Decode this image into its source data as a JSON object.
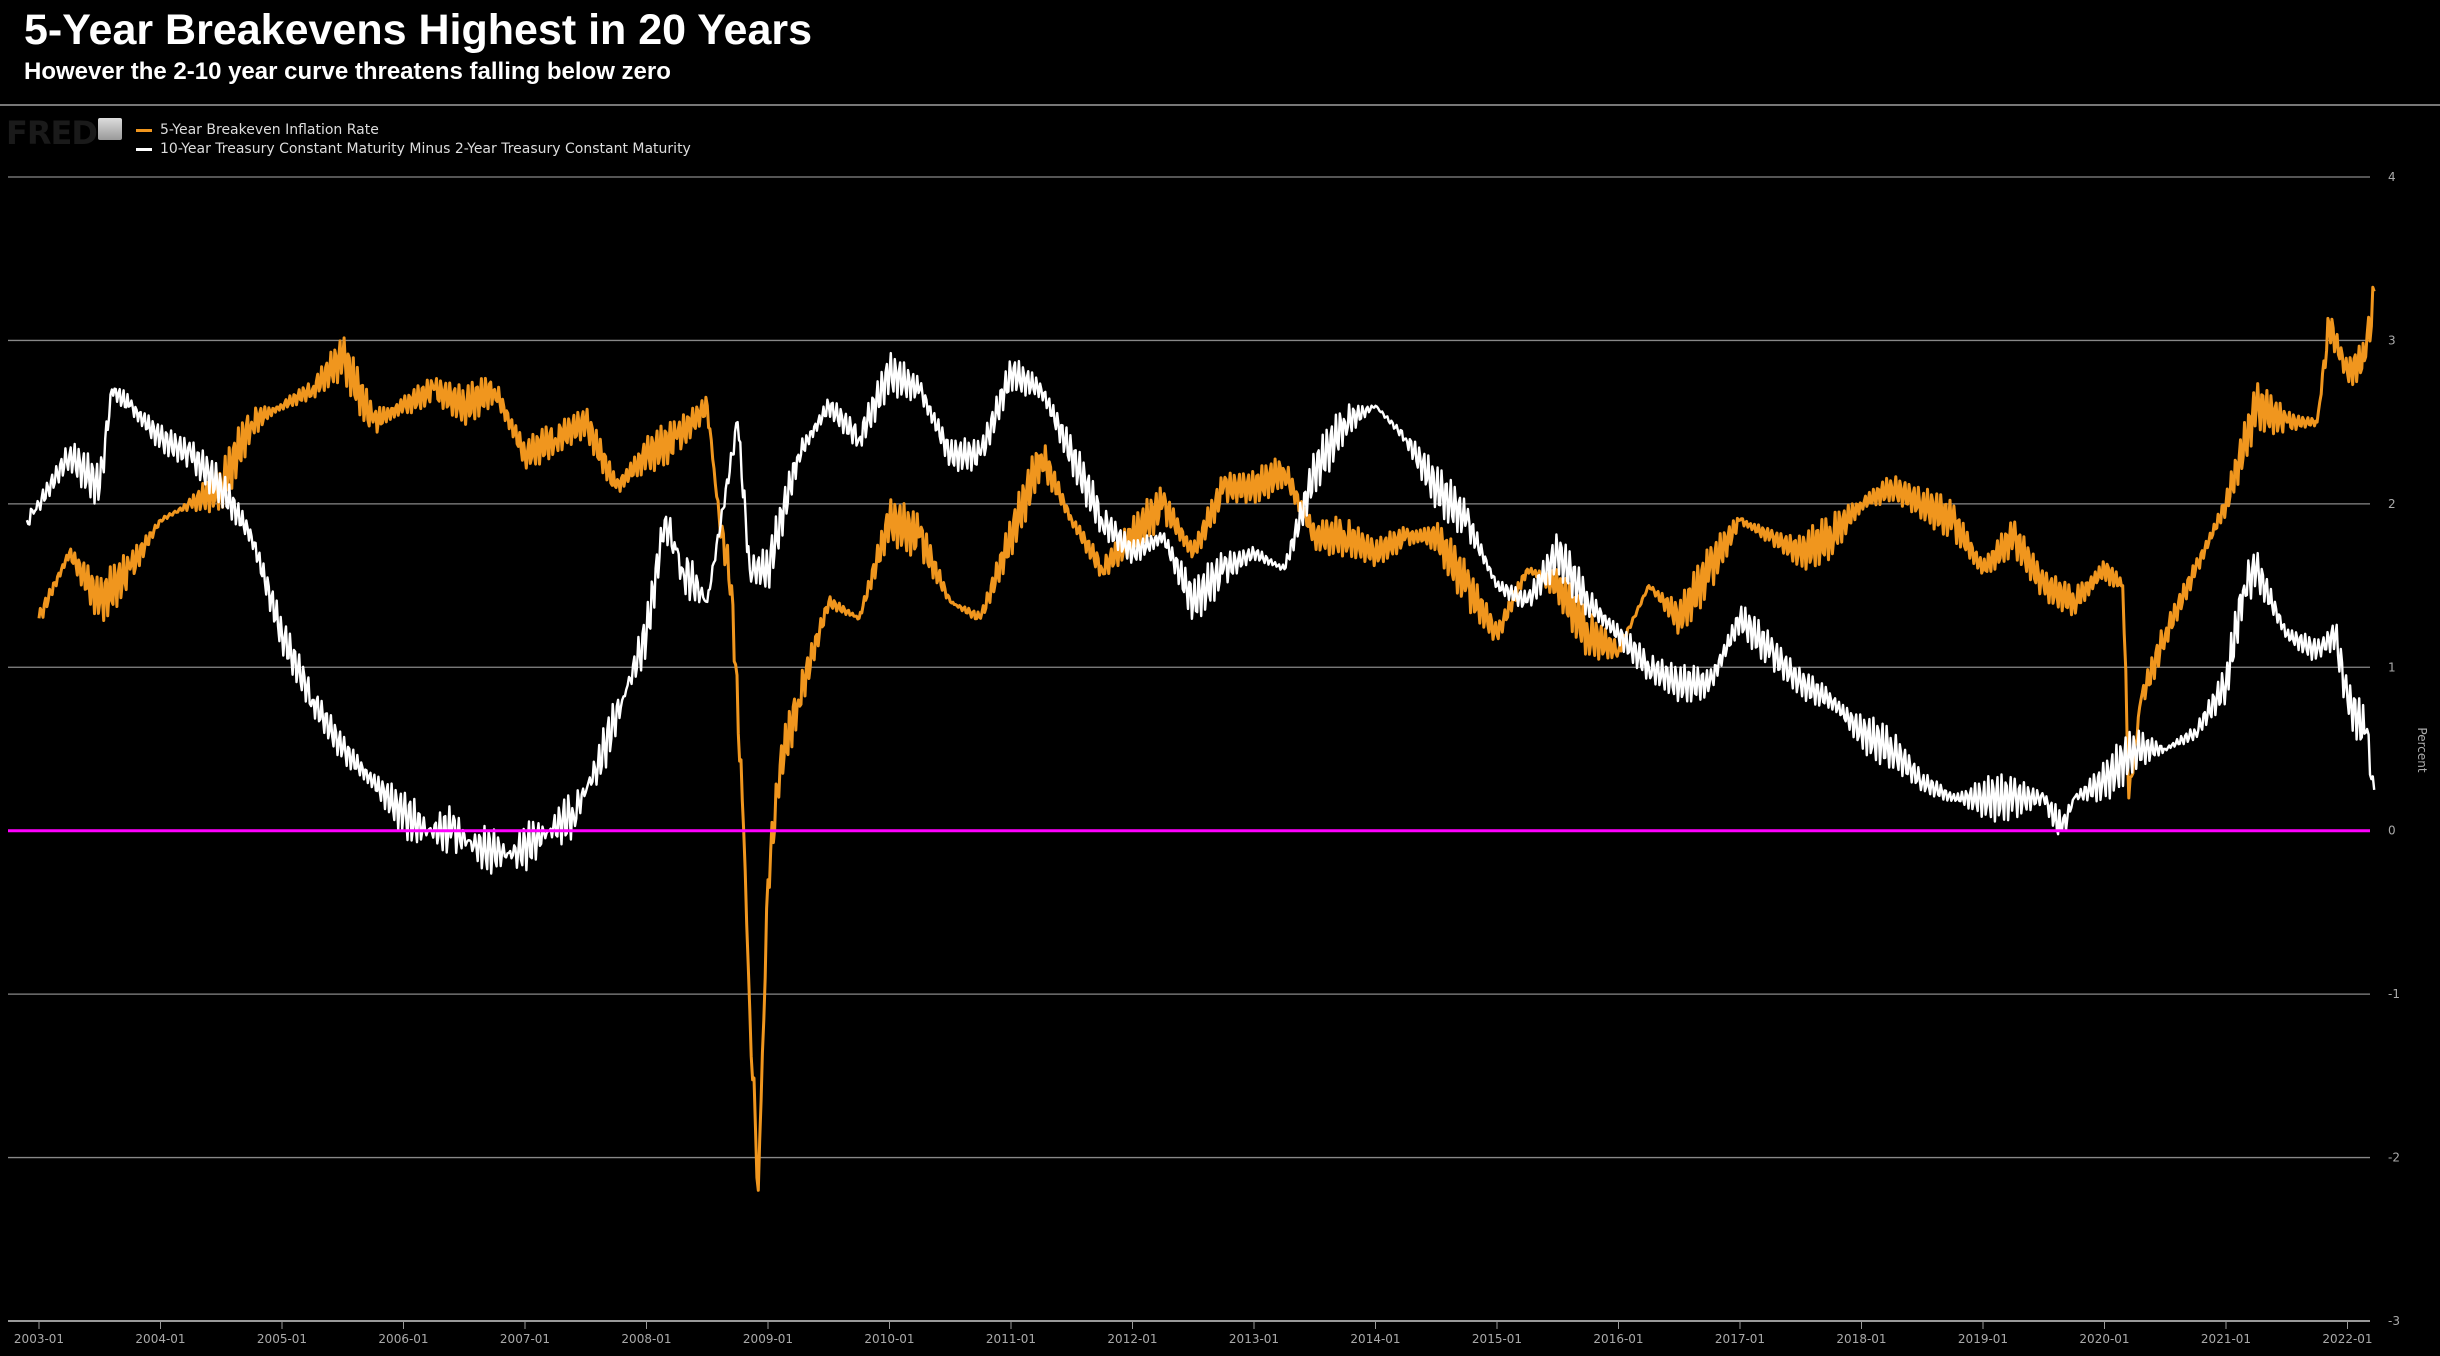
{
  "header": {
    "title": "5-Year Breakevens Highest in 20 Years",
    "subtitle": "However the 2-10 year curve threatens falling below zero"
  },
  "logo": "FRED",
  "chart_data": {
    "type": "line",
    "title": "5-Year Breakevens Highest in 20 Years",
    "subtitle": "However the 2-10 year curve threatens falling below zero",
    "xlabel": "",
    "ylabel": "Percent",
    "xlim": [
      2002.9,
      2022.22
    ],
    "ylim": [
      -3,
      4
    ],
    "yticks": [
      4,
      3,
      2,
      1,
      0,
      -1,
      -2,
      -3
    ],
    "xticks": [
      "2003-01",
      "2004-01",
      "2005-01",
      "2006-01",
      "2007-01",
      "2008-01",
      "2009-01",
      "2010-01",
      "2011-01",
      "2012-01",
      "2013-01",
      "2014-01",
      "2015-01",
      "2016-01",
      "2017-01",
      "2018-01",
      "2019-01",
      "2020-01",
      "2021-01",
      "2022-01"
    ],
    "reference_line": {
      "value": 0,
      "color": "#ff00ff"
    },
    "legend_placement": "top-left",
    "series": [
      {
        "name": "5-Year Breakeven Inflation Rate",
        "color": "#f0961e",
        "points": [
          [
            2003.0,
            1.3
          ],
          [
            2003.25,
            1.7
          ],
          [
            2003.5,
            1.4
          ],
          [
            2003.75,
            1.6
          ],
          [
            2004.0,
            1.9
          ],
          [
            2004.25,
            2.0
          ],
          [
            2004.5,
            2.1
          ],
          [
            2004.75,
            2.5
          ],
          [
            2005.0,
            2.6
          ],
          [
            2005.25,
            2.7
          ],
          [
            2005.5,
            2.9
          ],
          [
            2005.75,
            2.5
          ],
          [
            2006.0,
            2.6
          ],
          [
            2006.25,
            2.7
          ],
          [
            2006.5,
            2.6
          ],
          [
            2006.75,
            2.7
          ],
          [
            2007.0,
            2.3
          ],
          [
            2007.25,
            2.4
          ],
          [
            2007.5,
            2.5
          ],
          [
            2007.75,
            2.1
          ],
          [
            2008.0,
            2.3
          ],
          [
            2008.25,
            2.4
          ],
          [
            2008.5,
            2.6
          ],
          [
            2008.6,
            1.9
          ],
          [
            2008.7,
            1.5
          ],
          [
            2008.8,
            0.0
          ],
          [
            2008.85,
            -1.1
          ],
          [
            2008.92,
            -2.2
          ],
          [
            2009.0,
            -0.3
          ],
          [
            2009.1,
            0.4
          ],
          [
            2009.25,
            0.8
          ],
          [
            2009.5,
            1.4
          ],
          [
            2009.75,
            1.3
          ],
          [
            2010.0,
            1.9
          ],
          [
            2010.25,
            1.8
          ],
          [
            2010.5,
            1.4
          ],
          [
            2010.75,
            1.3
          ],
          [
            2011.0,
            1.8
          ],
          [
            2011.25,
            2.3
          ],
          [
            2011.5,
            1.9
          ],
          [
            2011.75,
            1.6
          ],
          [
            2012.0,
            1.8
          ],
          [
            2012.25,
            2.0
          ],
          [
            2012.5,
            1.7
          ],
          [
            2012.75,
            2.1
          ],
          [
            2013.0,
            2.1
          ],
          [
            2013.25,
            2.2
          ],
          [
            2013.5,
            1.8
          ],
          [
            2013.75,
            1.8
          ],
          [
            2014.0,
            1.7
          ],
          [
            2014.25,
            1.8
          ],
          [
            2014.5,
            1.8
          ],
          [
            2014.75,
            1.5
          ],
          [
            2015.0,
            1.2
          ],
          [
            2015.25,
            1.6
          ],
          [
            2015.5,
            1.5
          ],
          [
            2015.75,
            1.2
          ],
          [
            2016.0,
            1.1
          ],
          [
            2016.25,
            1.5
          ],
          [
            2016.5,
            1.3
          ],
          [
            2016.75,
            1.6
          ],
          [
            2017.0,
            1.9
          ],
          [
            2017.25,
            1.8
          ],
          [
            2017.5,
            1.7
          ],
          [
            2017.75,
            1.8
          ],
          [
            2018.0,
            2.0
          ],
          [
            2018.25,
            2.1
          ],
          [
            2018.5,
            2.0
          ],
          [
            2018.75,
            1.9
          ],
          [
            2019.0,
            1.6
          ],
          [
            2019.25,
            1.8
          ],
          [
            2019.5,
            1.5
          ],
          [
            2019.75,
            1.4
          ],
          [
            2020.0,
            1.6
          ],
          [
            2020.15,
            1.5
          ],
          [
            2020.2,
            0.2
          ],
          [
            2020.3,
            0.8
          ],
          [
            2020.5,
            1.2
          ],
          [
            2020.75,
            1.6
          ],
          [
            2021.0,
            2.0
          ],
          [
            2021.25,
            2.6
          ],
          [
            2021.5,
            2.5
          ],
          [
            2021.75,
            2.5
          ],
          [
            2021.85,
            3.1
          ],
          [
            2022.0,
            2.8
          ],
          [
            2022.15,
            2.9
          ],
          [
            2022.22,
            3.3
          ]
        ]
      },
      {
        "name": "10-Year Treasury Constant Maturity Minus 2-Year Treasury Constant Maturity",
        "color": "#ffffff",
        "points": [
          [
            2002.9,
            1.9
          ],
          [
            2003.0,
            2.0
          ],
          [
            2003.25,
            2.3
          ],
          [
            2003.5,
            2.1
          ],
          [
            2003.6,
            2.7
          ],
          [
            2003.75,
            2.6
          ],
          [
            2004.0,
            2.4
          ],
          [
            2004.25,
            2.3
          ],
          [
            2004.5,
            2.1
          ],
          [
            2004.75,
            1.8
          ],
          [
            2005.0,
            1.2
          ],
          [
            2005.25,
            0.8
          ],
          [
            2005.5,
            0.5
          ],
          [
            2005.75,
            0.3
          ],
          [
            2006.0,
            0.1
          ],
          [
            2006.2,
            0.0
          ],
          [
            2006.4,
            0.0
          ],
          [
            2006.6,
            -0.1
          ],
          [
            2006.9,
            -0.15
          ],
          [
            2007.2,
            0.0
          ],
          [
            2007.4,
            0.1
          ],
          [
            2007.6,
            0.4
          ],
          [
            2007.8,
            0.8
          ],
          [
            2008.0,
            1.2
          ],
          [
            2008.15,
            1.9
          ],
          [
            2008.3,
            1.6
          ],
          [
            2008.5,
            1.4
          ],
          [
            2008.75,
            2.5
          ],
          [
            2008.85,
            1.6
          ],
          [
            2009.0,
            1.6
          ],
          [
            2009.25,
            2.3
          ],
          [
            2009.5,
            2.6
          ],
          [
            2009.75,
            2.4
          ],
          [
            2010.0,
            2.8
          ],
          [
            2010.25,
            2.7
          ],
          [
            2010.5,
            2.3
          ],
          [
            2010.75,
            2.3
          ],
          [
            2011.0,
            2.8
          ],
          [
            2011.25,
            2.7
          ],
          [
            2011.5,
            2.3
          ],
          [
            2011.75,
            1.9
          ],
          [
            2012.0,
            1.7
          ],
          [
            2012.25,
            1.8
          ],
          [
            2012.5,
            1.4
          ],
          [
            2012.75,
            1.6
          ],
          [
            2013.0,
            1.7
          ],
          [
            2013.25,
            1.6
          ],
          [
            2013.5,
            2.2
          ],
          [
            2013.75,
            2.5
          ],
          [
            2014.0,
            2.6
          ],
          [
            2014.25,
            2.4
          ],
          [
            2014.5,
            2.1
          ],
          [
            2014.75,
            1.9
          ],
          [
            2015.0,
            1.5
          ],
          [
            2015.25,
            1.4
          ],
          [
            2015.5,
            1.7
          ],
          [
            2015.75,
            1.4
          ],
          [
            2016.0,
            1.2
          ],
          [
            2016.25,
            1.0
          ],
          [
            2016.5,
            0.9
          ],
          [
            2016.75,
            0.9
          ],
          [
            2017.0,
            1.3
          ],
          [
            2017.25,
            1.1
          ],
          [
            2017.5,
            0.9
          ],
          [
            2017.75,
            0.8
          ],
          [
            2018.0,
            0.6
          ],
          [
            2018.25,
            0.5
          ],
          [
            2018.5,
            0.3
          ],
          [
            2018.75,
            0.2
          ],
          [
            2019.0,
            0.2
          ],
          [
            2019.25,
            0.2
          ],
          [
            2019.5,
            0.2
          ],
          [
            2019.65,
            0.0
          ],
          [
            2019.75,
            0.2
          ],
          [
            2020.0,
            0.3
          ],
          [
            2020.25,
            0.5
          ],
          [
            2020.5,
            0.5
          ],
          [
            2020.75,
            0.6
          ],
          [
            2021.0,
            0.9
          ],
          [
            2021.15,
            1.5
          ],
          [
            2021.25,
            1.6
          ],
          [
            2021.5,
            1.2
          ],
          [
            2021.75,
            1.1
          ],
          [
            2021.9,
            1.2
          ],
          [
            2022.0,
            0.8
          ],
          [
            2022.15,
            0.6
          ],
          [
            2022.22,
            0.25
          ]
        ]
      }
    ]
  }
}
